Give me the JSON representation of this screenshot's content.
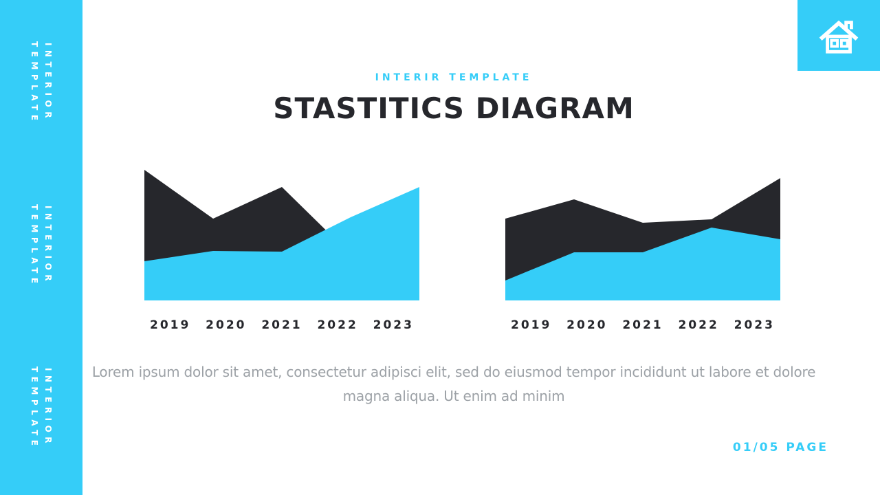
{
  "colors": {
    "accent": "#35CDF8",
    "dark": "#26272C",
    "gray_text": "#9CA1A6",
    "background": "#ffffff",
    "sidebar_text": "#ffffff"
  },
  "sidebar": {
    "label_line1": "INTERIOR",
    "label_line2": "TEMPLATE",
    "repeat_count": 3
  },
  "home_tile": {
    "icon": "home-icon"
  },
  "header": {
    "subtitle": "INTERIR TEMPLATE",
    "title": "STASTITICS DIAGRAM"
  },
  "chart_data": [
    {
      "type": "area",
      "position": "left",
      "title": "",
      "xlabel": "",
      "ylabel": "",
      "categories": [
        "2019",
        "2020",
        "2021",
        "2022",
        "2023"
      ],
      "series": [
        {
          "name": "dark-area",
          "color": "#26272C",
          "values": [
            95,
            59.5,
            82.5,
            33.5,
            0
          ]
        },
        {
          "name": "cyan-area",
          "color": "#35CDF8",
          "values": [
            28.5,
            36,
            35.5,
            60.5,
            82.5
          ]
        }
      ],
      "ylim": [
        0,
        100
      ],
      "grid": false,
      "legend": false
    },
    {
      "type": "area",
      "position": "right",
      "title": "",
      "xlabel": "",
      "ylabel": "",
      "categories": [
        "2019",
        "2020",
        "2021",
        "2022",
        "2023"
      ],
      "series": [
        {
          "name": "dark-area",
          "color": "#26272C",
          "values": [
            59.5,
            73.5,
            56.5,
            59,
            89
          ]
        },
        {
          "name": "cyan-area",
          "color": "#35CDF8",
          "values": [
            14.5,
            35,
            35,
            53,
            44.5
          ]
        }
      ],
      "ylim": [
        0,
        100
      ],
      "grid": false,
      "legend": false
    }
  ],
  "description": {
    "line1": "Lorem ipsum dolor sit amet, consectetur adipisci elit, sed do eiusmod tempor incididunt ut labore et dolore",
    "line2": "magna aliqua. Ut enim ad minim"
  },
  "footer": {
    "page_label": "01/05 PAGE"
  }
}
